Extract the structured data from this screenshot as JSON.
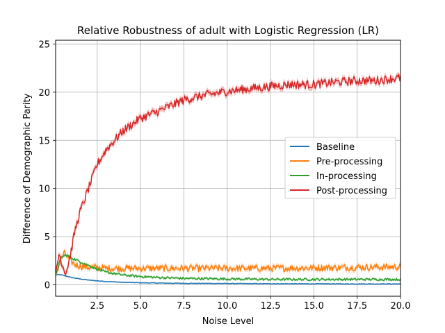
{
  "chart_data": {
    "type": "line",
    "title": "Relative Robustness of adult with Logistic Regression (LR)",
    "xlabel": "Noise Level",
    "ylabel": "Difference of Demographic Parity",
    "xlim": [
      0.1,
      20.0
    ],
    "ylim": [
      -1.2,
      25.4
    ],
    "x_ticks": [
      2.5,
      5.0,
      7.5,
      10.0,
      12.5,
      15.0,
      17.5,
      20.0
    ],
    "x_tick_labels": [
      "2.5",
      "5.0",
      "7.5",
      "10.0",
      "12.5",
      "15.0",
      "17.5",
      "20.0"
    ],
    "y_ticks": [
      0,
      5,
      10,
      15,
      20,
      25
    ],
    "y_tick_labels": [
      "0",
      "5",
      "10",
      "15",
      "20",
      "25"
    ],
    "grid": true,
    "legend_position": "center-right",
    "series": [
      {
        "name": "Baseline",
        "color": "#1f77b4",
        "noise": 0.03,
        "x": [
          0.1,
          0.3,
          0.6,
          1.0,
          1.5,
          2.0,
          2.5,
          3.0,
          4.0,
          5.0,
          6.0,
          7.5,
          10.0,
          12.5,
          15.0,
          17.5,
          20.0
        ],
        "y": [
          1.0,
          1.05,
          0.95,
          0.75,
          0.6,
          0.48,
          0.4,
          0.33,
          0.25,
          0.2,
          0.17,
          0.14,
          0.12,
          0.1,
          0.09,
          0.08,
          0.08
        ]
      },
      {
        "name": "Pre-processing",
        "color": "#ff7f0e",
        "noise": 0.35,
        "x": [
          0.1,
          0.4,
          0.6,
          0.9,
          1.2,
          1.6,
          2.0,
          2.5,
          3.0,
          4.0,
          5.0,
          7.5,
          10.0,
          12.5,
          15.0,
          17.5,
          20.0
        ],
        "y": [
          1.0,
          2.6,
          3.3,
          2.6,
          2.1,
          1.9,
          1.8,
          1.8,
          1.7,
          1.7,
          1.7,
          1.7,
          1.7,
          1.7,
          1.75,
          1.8,
          1.85
        ]
      },
      {
        "name": "In-processing",
        "color": "#2ca02c",
        "noise": 0.12,
        "x": [
          0.1,
          0.4,
          0.7,
          1.0,
          1.5,
          2.0,
          2.5,
          3.0,
          4.0,
          5.0,
          6.0,
          7.5,
          10.0,
          12.5,
          15.0,
          17.5,
          20.0
        ],
        "y": [
          1.0,
          2.8,
          3.1,
          2.8,
          2.4,
          2.0,
          1.6,
          1.3,
          1.0,
          0.85,
          0.75,
          0.65,
          0.6,
          0.55,
          0.55,
          0.55,
          0.55
        ]
      },
      {
        "name": "Post-processing",
        "color": "#d62728",
        "noise": 0.45,
        "x": [
          0.1,
          0.3,
          0.5,
          0.7,
          1.0,
          1.2,
          1.5,
          2.0,
          2.5,
          3.0,
          3.5,
          4.0,
          5.0,
          6.0,
          7.0,
          7.5,
          8.5,
          10.0,
          11.0,
          12.5,
          13.5,
          15.0,
          16.0,
          17.5,
          18.5,
          20.0
        ],
        "y": [
          1.0,
          3.3,
          2.0,
          1.2,
          3.5,
          5.5,
          7.5,
          10.0,
          12.5,
          14.0,
          15.0,
          16.0,
          17.3,
          18.0,
          18.8,
          19.2,
          19.6,
          20.1,
          20.3,
          20.6,
          20.8,
          20.8,
          21.0,
          21.2,
          21.2,
          21.5
        ]
      }
    ]
  }
}
